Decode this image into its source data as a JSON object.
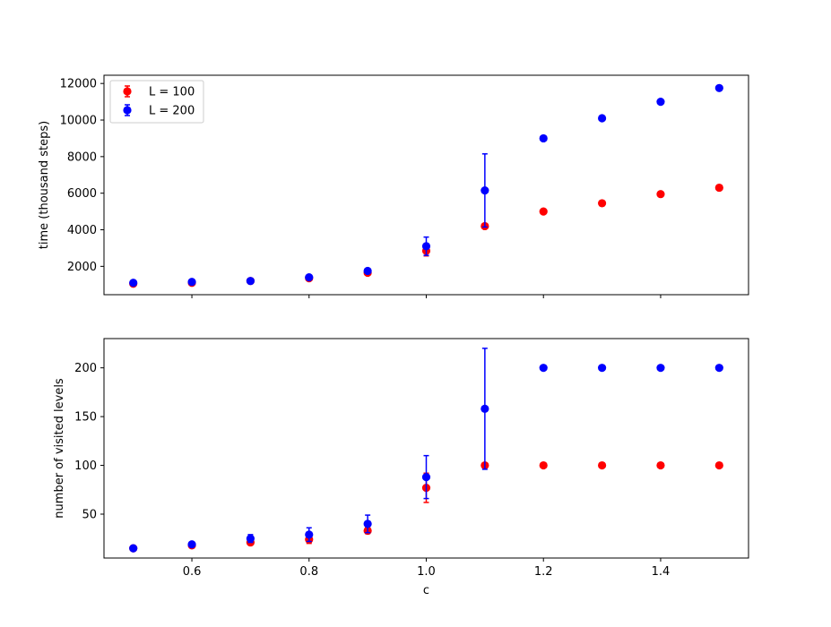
{
  "chart_data": [
    {
      "type": "scatter",
      "xlabel": "",
      "ylabel": "time (thousand steps)",
      "xlim": [
        0.45,
        1.55
      ],
      "ylim": [
        450,
        12450
      ],
      "xticks": [
        0.6,
        0.8,
        1.0,
        1.2,
        1.4
      ],
      "xtick_labels": [
        "0.6",
        "0.8",
        "1.0",
        "1.2",
        "1.4"
      ],
      "show_xtick_labels": false,
      "yticks": [
        2000,
        4000,
        6000,
        8000,
        10000,
        12000
      ],
      "ytick_labels": [
        "2000",
        "4000",
        "6000",
        "8000",
        "10000",
        "12000"
      ],
      "grid": false,
      "legend": "top-left",
      "series": [
        {
          "name": "L = 100",
          "color": "#ff0000",
          "x": [
            0.5,
            0.6,
            0.7,
            0.8,
            0.9,
            1.0,
            1.1,
            1.2,
            1.3,
            1.4,
            1.5
          ],
          "y": [
            1050,
            1100,
            1200,
            1350,
            1650,
            2850,
            4200,
            5000,
            5450,
            5950,
            6300
          ],
          "err": [
            0,
            0,
            0,
            0,
            0,
            280,
            0,
            0,
            0,
            0,
            0
          ]
        },
        {
          "name": "L = 200",
          "color": "#0000ff",
          "x": [
            0.5,
            0.6,
            0.7,
            0.8,
            0.9,
            1.0,
            1.1,
            1.2,
            1.3,
            1.4,
            1.5
          ],
          "y": [
            1100,
            1150,
            1200,
            1400,
            1750,
            3100,
            6150,
            9000,
            10100,
            11000,
            11750
          ],
          "err": [
            0,
            0,
            0,
            0,
            0,
            500,
            2000,
            0,
            0,
            0,
            0
          ]
        }
      ]
    },
    {
      "type": "scatter",
      "xlabel": "c",
      "ylabel": "number of visited levels",
      "xlim": [
        0.45,
        1.55
      ],
      "ylim": [
        5,
        230
      ],
      "xticks": [
        0.6,
        0.8,
        1.0,
        1.2,
        1.4
      ],
      "xtick_labels": [
        "0.6",
        "0.8",
        "1.0",
        "1.2",
        "1.4"
      ],
      "show_xtick_labels": true,
      "yticks": [
        50,
        100,
        150,
        200
      ],
      "ytick_labels": [
        "50",
        "100",
        "150",
        "200"
      ],
      "grid": false,
      "legend": "none",
      "series": [
        {
          "name": "L = 100",
          "color": "#ff0000",
          "x": [
            0.5,
            0.6,
            0.7,
            0.8,
            0.9,
            1.0,
            1.1,
            1.2,
            1.3,
            1.4,
            1.5
          ],
          "y": [
            15,
            18,
            21,
            24,
            33,
            77,
            100,
            100,
            100,
            100,
            100
          ],
          "err": [
            0,
            0,
            2,
            4,
            3,
            15,
            0,
            0,
            0,
            0,
            0
          ]
        },
        {
          "name": "L = 200",
          "color": "#0000ff",
          "x": [
            0.5,
            0.6,
            0.7,
            0.8,
            0.9,
            1.0,
            1.1,
            1.2,
            1.3,
            1.4,
            1.5
          ],
          "y": [
            15,
            19,
            25,
            29,
            40,
            88,
            158,
            200,
            200,
            200,
            200
          ],
          "err": [
            0,
            0,
            4,
            7,
            9,
            22,
            62,
            0,
            0,
            0,
            0
          ]
        }
      ]
    }
  ]
}
